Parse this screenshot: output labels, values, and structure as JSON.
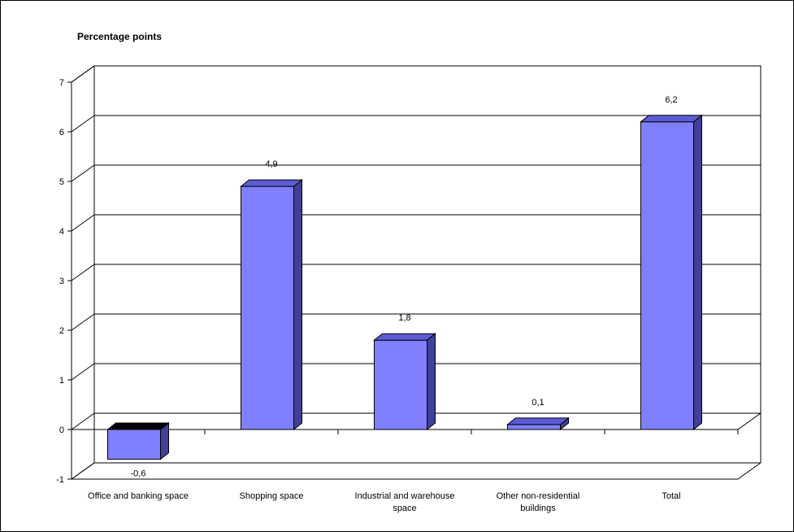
{
  "chart_data": {
    "type": "bar",
    "title": "Percentage points",
    "categories": [
      "Office and banking space",
      "Shopping space",
      "Industrial  and warehouse space",
      "Other non-residential buildings",
      "Total"
    ],
    "values": [
      -0.6,
      4.9,
      1.8,
      0.1,
      6.2
    ],
    "value_labels": [
      "-0,6",
      "4,9",
      "1,8",
      "0,1",
      "6,2"
    ],
    "y_ticks": [
      "-1",
      "0",
      "1",
      "2",
      "3",
      "4",
      "5",
      "6",
      "7"
    ],
    "ylim": [
      -1,
      7
    ],
    "grid": true,
    "legend": "none",
    "three_d": true,
    "colors": {
      "bar_front": "#8080ff",
      "bar_side": "#40409a",
      "bar_top": "#5c5cd6",
      "negative_top": "#000000"
    }
  }
}
